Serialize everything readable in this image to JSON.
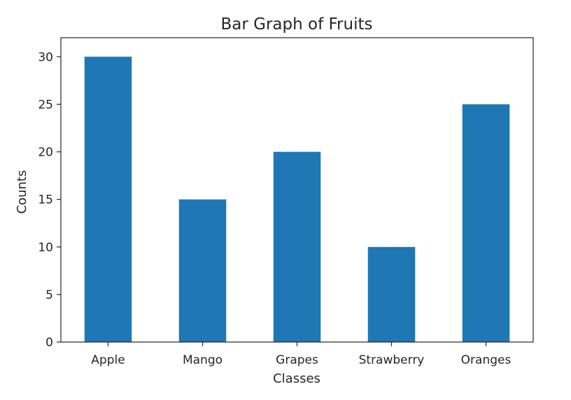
{
  "chart_data": {
    "type": "bar",
    "title": "Bar Graph of Fruits",
    "xlabel": "Classes",
    "ylabel": "Counts",
    "categories": [
      "Apple",
      "Mango",
      "Grapes",
      "Strawberry",
      "Oranges"
    ],
    "values": [
      30,
      15,
      20,
      10,
      25
    ],
    "ylim": [
      0,
      32
    ],
    "yticks": [
      0,
      5,
      10,
      15,
      20,
      25,
      30
    ],
    "bar_color": "#1f77b4",
    "grid": false
  }
}
